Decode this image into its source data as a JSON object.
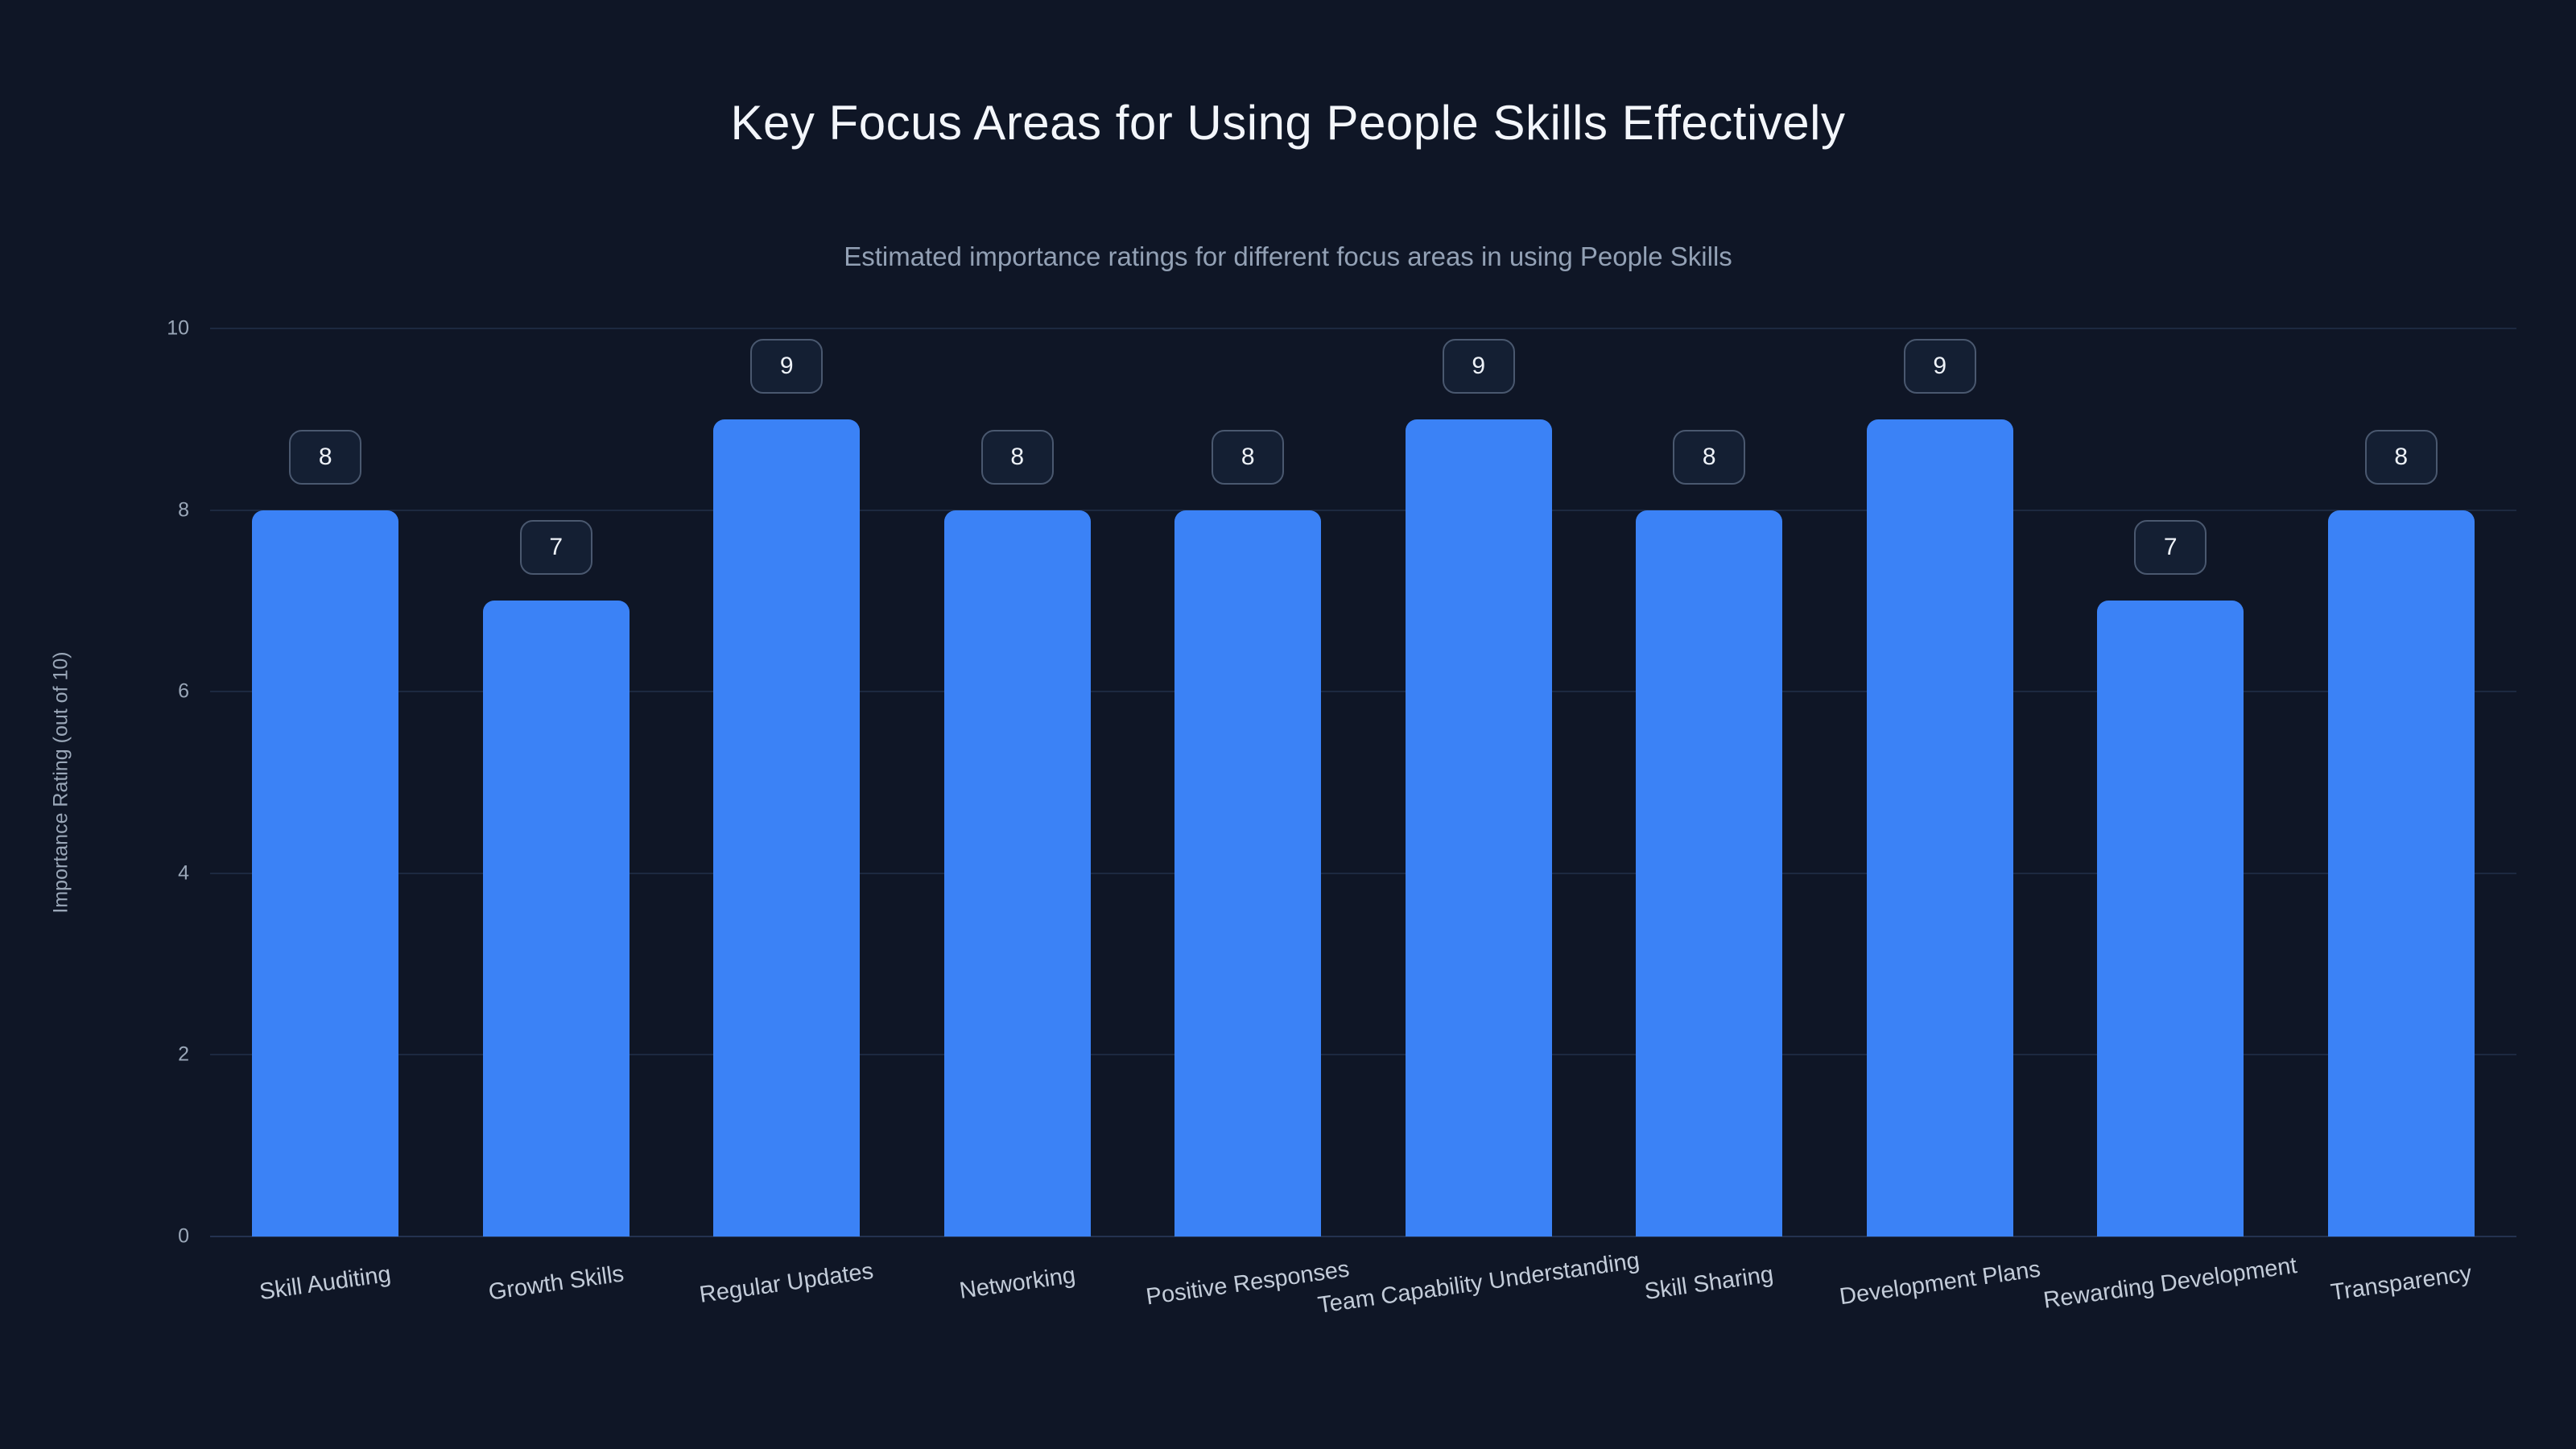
{
  "chart_data": {
    "type": "bar",
    "title": "Key Focus Areas for Using People Skills Effectively",
    "subtitle": "Estimated importance ratings for different focus areas in using People Skills",
    "ylabel": "Importance Rating (out of 10)",
    "xlabel": "",
    "categories": [
      "Skill Auditing",
      "Growth Skills",
      "Regular Updates",
      "Networking",
      "Positive Responses",
      "Team Capability Understanding",
      "Skill Sharing",
      "Development Plans",
      "Rewarding Development",
      "Transparency"
    ],
    "values": [
      8,
      7,
      9,
      8,
      8,
      9,
      8,
      9,
      7,
      8
    ],
    "data_labels": [
      "8",
      "7",
      "9",
      "8",
      "8",
      "9",
      "8",
      "9",
      "7",
      "8"
    ],
    "ylim": [
      0,
      10
    ],
    "yticks": [
      0,
      2,
      4,
      6,
      8,
      10
    ],
    "grid": true,
    "legend": false,
    "colors": {
      "background": "#0f1626",
      "bar": "#3b82f6",
      "title": "#f3f6fb",
      "subtitle": "#93a1b5",
      "axis_text": "#9aa7b8",
      "gridline": "#1d2940",
      "badge_border": "#4a586f",
      "badge_bg": "#141f33",
      "badge_text": "#eef2f8",
      "xlabel_text": "#c3ccd9"
    }
  }
}
